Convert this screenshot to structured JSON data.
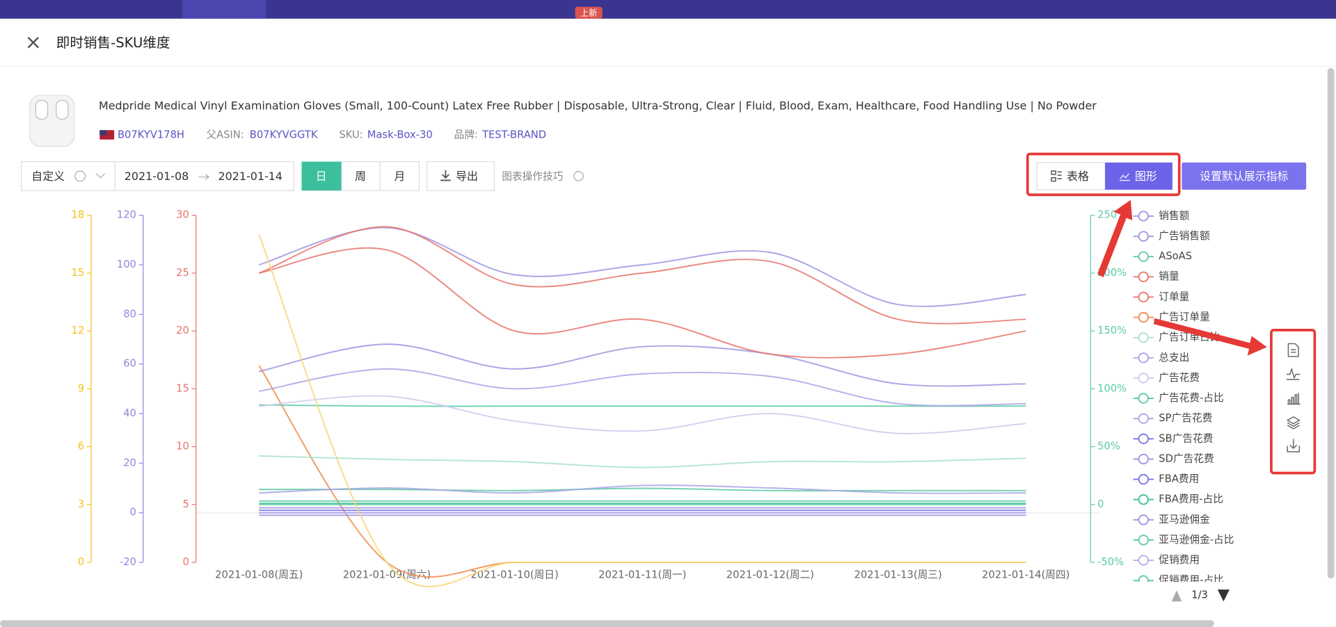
{
  "top_badge": "上新",
  "header": {
    "title": "即时销售-SKU维度"
  },
  "product": {
    "name": "Medpride Medical Vinyl Examination Gloves (Small, 100-Count) Latex Free Rubber | Disposable, Ultra-Strong, Clear | Fluid, Blood, Exam, Healthcare, Food Handling Use | No Powder",
    "asin": "B07KYV178H",
    "parent_asin_label": "父ASIN:",
    "parent_asin": "B07KYVGGTK",
    "sku_label": "SKU:",
    "sku": "Mask-Box-30",
    "brand_label": "品牌:",
    "brand": "TEST-BRAND"
  },
  "toolbar": {
    "range_type": "自定义",
    "start_date": "2021-01-08",
    "end_date": "2021-01-14",
    "granularity": [
      "日",
      "周",
      "月"
    ],
    "export": "导出",
    "tips": "图表操作技巧",
    "view_table": "表格",
    "view_chart": "图形",
    "set_default": "设置默认展示指标"
  },
  "chart_data": {
    "type": "line",
    "categories": [
      "2021-01-08(周五)",
      "2021-01-09(周六)",
      "2021-01-10(周日)",
      "2021-01-11(周一)",
      "2021-01-12(周二)",
      "2021-01-13(周三)",
      "2021-01-14(周四)"
    ],
    "ylim": [
      0,
      30
    ],
    "yticks": [
      0,
      5,
      10,
      15,
      20,
      25,
      30
    ],
    "y_color": "#e8736b",
    "y3lim": [
      -20,
      120
    ],
    "y3ticks": [
      -20,
      0,
      20,
      40,
      60,
      80,
      100,
      120
    ],
    "y3_color": "#8f88dc",
    "y4lim": [
      0,
      18
    ],
    "y4ticks": [
      0,
      3,
      6,
      9,
      12,
      15,
      18
    ],
    "y4_color": "#f2c318",
    "y2lim": [
      -50,
      250
    ],
    "y2ticks": [
      {
        "value": -50,
        "label": "-50%"
      },
      {
        "value": 0,
        "label": "0"
      },
      {
        "value": 50,
        "label": "50%"
      },
      {
        "value": 100,
        "label": "100%"
      },
      {
        "value": 150,
        "label": "150%"
      },
      {
        "value": 200,
        "label": "200%"
      },
      {
        "value": 250,
        "label": "250%"
      }
    ],
    "y2_color": "#5cc9a7",
    "legend_position": "right",
    "legend_page": "1/3",
    "series": [
      {
        "name": "销售额",
        "color": "#9b95e0",
        "axis": "y3",
        "values": [
          100,
          115,
          96,
          100,
          105,
          84,
          88
        ]
      },
      {
        "name": "广告销售额",
        "color": "#9b95e0",
        "axis": "y3",
        "values": [
          57,
          68,
          58,
          67,
          64,
          52,
          52
        ]
      },
      {
        "name": "ASoAS",
        "color": "#5cc9a7",
        "axis": "y2",
        "values": [
          86,
          85,
          85,
          85,
          85,
          85,
          85
        ]
      },
      {
        "name": "销量",
        "color": "#e8736b",
        "axis": "y",
        "values": [
          25,
          29,
          24,
          25,
          26,
          21,
          21
        ]
      },
      {
        "name": "订单量",
        "color": "#e8736b",
        "axis": "y",
        "values": [
          25,
          27,
          20,
          21,
          18,
          18,
          20
        ]
      },
      {
        "name": "广告订单量",
        "color": "#f08a4b",
        "axis": "y",
        "values": [
          17,
          0,
          0,
          0,
          0,
          0,
          0
        ]
      },
      {
        "name": "广告订单占比",
        "color": "#a8e0cf",
        "axis": "y2",
        "values": [
          42,
          39,
          37,
          32,
          37,
          37,
          40
        ]
      },
      {
        "name": "总支出",
        "color": "#a9a3e6",
        "axis": "y3",
        "values": [
          49,
          58,
          50,
          56,
          55,
          44,
          44
        ]
      },
      {
        "name": "广告花费",
        "color": "#cdc9f0",
        "axis": "y3",
        "values": [
          43,
          47,
          37,
          33,
          40,
          32,
          36
        ]
      },
      {
        "name": "广告花费-占比",
        "color": "#5cc9a7",
        "axis": "y2",
        "values": [
          13,
          13,
          12,
          14,
          12,
          12,
          12
        ]
      },
      {
        "name": "SP广告花费",
        "color": "#a9a3e6",
        "axis": "y3",
        "values": [
          8,
          10,
          8,
          11,
          10,
          8,
          8
        ]
      },
      {
        "name": "SB广告花费",
        "color": "#7d75e6",
        "axis": "y3",
        "values": [
          0,
          0,
          0,
          0,
          0,
          0,
          0
        ]
      },
      {
        "name": "SD广告花费",
        "color": "#9b95e0",
        "axis": "y3",
        "values": [
          -1,
          -1,
          -1,
          -1,
          -1,
          -1,
          -1
        ]
      },
      {
        "name": "FBA费用",
        "color": "#7d75e6",
        "axis": "y3",
        "values": [
          1,
          1,
          1,
          1,
          1,
          1,
          1
        ]
      },
      {
        "name": "FBA费用-占比",
        "color": "#3fbf95",
        "axis": "y2",
        "values": [
          1,
          1,
          1,
          1,
          1,
          1,
          1
        ]
      },
      {
        "name": "亚马逊佣金",
        "color": "#9b95e0",
        "axis": "y3",
        "values": [
          2,
          2,
          2,
          2,
          2,
          2,
          2
        ]
      },
      {
        "name": "亚马逊佣金-占比",
        "color": "#5cc9a7",
        "axis": "y2",
        "values": [
          3,
          3,
          3,
          3,
          3,
          3,
          3
        ]
      },
      {
        "name": "促销费用",
        "color": "#b4aee9",
        "axis": "y3",
        "values": [
          0,
          0,
          0,
          0,
          0,
          0,
          0
        ]
      },
      {
        "name": "促销费用-占比",
        "color": "#5cc9a7",
        "axis": "y2",
        "values": [
          0,
          0,
          0,
          0,
          0,
          0,
          0
        ]
      },
      {
        "color": "#f7d774",
        "axis": "y4",
        "values": [
          17,
          0,
          0,
          0,
          0,
          0,
          0
        ]
      }
    ]
  }
}
